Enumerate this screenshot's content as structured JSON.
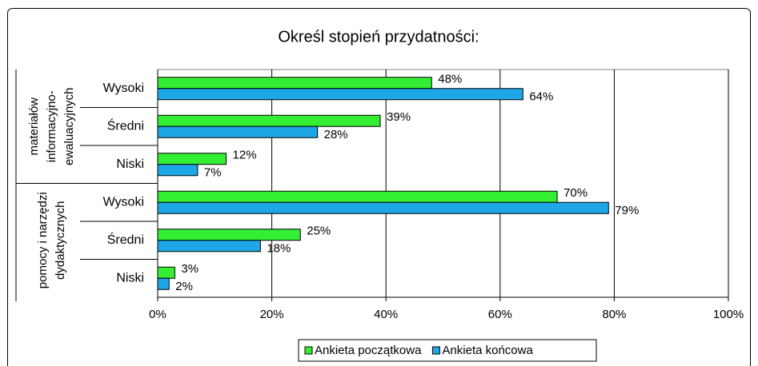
{
  "chart_data": {
    "type": "bar",
    "orientation": "horizontal",
    "title": "Określ stopień przydatności:",
    "groups": [
      {
        "lines": [
          "materiałów",
          "informacyjno-",
          "ewaluacyjnych"
        ],
        "categories": [
          "Wysoki",
          "Średni",
          "Niski"
        ]
      },
      {
        "lines": [
          "pomocy i narzędzi",
          "dydaktycznych"
        ],
        "categories": [
          "Wysoki",
          "Średni",
          "Niski"
        ]
      }
    ],
    "series": [
      {
        "name": "Ankieta początkowa",
        "color": "#33ee33",
        "values": [
          48,
          39,
          12,
          70,
          25,
          3
        ],
        "value_labels": [
          "48%",
          "39%",
          "12%",
          "70%",
          "25%",
          "3%"
        ]
      },
      {
        "name": "Ankieta końcowa",
        "color": "#1ea7e6",
        "values": [
          64,
          28,
          7,
          79,
          18,
          2
        ],
        "value_labels": [
          "64%",
          "28%",
          "7%",
          "79%",
          "18%",
          "2%"
        ]
      }
    ],
    "xlim": [
      0,
      100
    ],
    "xticks": [
      {
        "value": 0,
        "label": "0%"
      },
      {
        "value": 20,
        "label": "20%"
      },
      {
        "value": 40,
        "label": "40%"
      },
      {
        "value": 60,
        "label": "60%"
      },
      {
        "value": 80,
        "label": "80%"
      },
      {
        "value": 100,
        "label": "100%"
      }
    ],
    "grid": true,
    "legend": "bottom"
  }
}
